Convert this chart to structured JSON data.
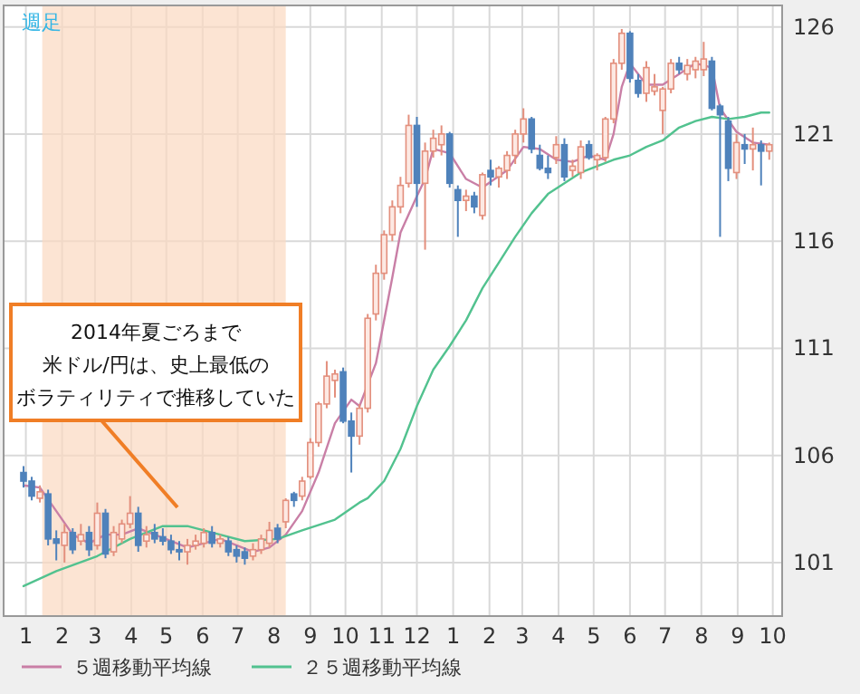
{
  "chart_data": {
    "type": "candlestick",
    "title": "週足",
    "x": [
      "2013-12-30",
      "2014-01-06",
      "2014-01-13",
      "2014-01-20",
      "2014-01-27",
      "2014-02-03",
      "2014-02-10",
      "2014-02-17",
      "2014-02-24",
      "2014-03-03",
      "2014-03-10",
      "2014-03-17",
      "2014-03-24",
      "2014-03-31",
      "2014-04-07",
      "2014-04-14",
      "2014-04-21",
      "2014-04-28",
      "2014-05-05",
      "2014-05-12",
      "2014-05-19",
      "2014-05-26",
      "2014-06-02",
      "2014-06-09",
      "2014-06-16",
      "2014-06-23",
      "2014-06-30",
      "2014-07-07",
      "2014-07-14",
      "2014-07-21",
      "2014-07-28",
      "2014-08-04",
      "2014-08-11",
      "2014-08-18",
      "2014-08-25",
      "2014-09-01",
      "2014-09-08",
      "2014-09-15",
      "2014-09-22",
      "2014-09-29",
      "2014-10-06",
      "2014-10-13",
      "2014-10-20",
      "2014-10-27",
      "2014-11-03",
      "2014-11-10",
      "2014-11-17",
      "2014-11-24",
      "2014-12-01",
      "2014-12-08",
      "2014-12-15",
      "2014-12-22",
      "2014-12-29",
      "2015-01-05",
      "2015-01-12",
      "2015-01-19",
      "2015-01-26",
      "2015-02-02",
      "2015-02-09",
      "2015-02-16",
      "2015-02-23",
      "2015-03-02",
      "2015-03-09",
      "2015-03-16",
      "2015-03-23",
      "2015-03-30",
      "2015-04-06",
      "2015-04-13",
      "2015-04-20",
      "2015-04-27",
      "2015-05-04",
      "2015-05-11",
      "2015-05-18",
      "2015-05-25",
      "2015-06-01",
      "2015-06-08",
      "2015-06-15",
      "2015-06-22",
      "2015-06-29",
      "2015-07-06",
      "2015-07-13",
      "2015-07-20",
      "2015-07-27",
      "2015-08-03",
      "2015-08-10",
      "2015-08-17",
      "2015-08-24",
      "2015-08-31",
      "2015-09-07",
      "2015-09-14",
      "2015-09-21",
      "2015-09-28"
    ],
    "ohlc": [
      [
        105.2,
        105.5,
        104.5,
        104.8
      ],
      [
        104.8,
        105.0,
        103.9,
        104.1
      ],
      [
        104.0,
        104.6,
        103.8,
        104.3
      ],
      [
        104.2,
        104.4,
        101.8,
        102.1
      ],
      [
        102.1,
        102.5,
        101.1,
        101.9
      ],
      [
        101.8,
        102.8,
        101.0,
        102.4
      ],
      [
        102.4,
        102.6,
        101.4,
        101.6
      ],
      [
        102.0,
        102.8,
        101.8,
        102.3
      ],
      [
        102.4,
        102.7,
        101.3,
        101.6
      ],
      [
        101.8,
        103.8,
        101.6,
        103.3
      ],
      [
        103.3,
        103.5,
        101.2,
        101.4
      ],
      [
        101.5,
        102.7,
        101.3,
        102.4
      ],
      [
        102.1,
        103.0,
        101.9,
        102.8
      ],
      [
        102.8,
        104.1,
        102.6,
        103.3
      ],
      [
        103.3,
        103.6,
        101.5,
        101.8
      ],
      [
        102.0,
        102.7,
        101.7,
        102.3
      ],
      [
        102.4,
        102.8,
        101.9,
        102.1
      ],
      [
        102.2,
        102.6,
        101.8,
        102.0
      ],
      [
        102.0,
        102.3,
        101.4,
        101.6
      ],
      [
        101.6,
        102.0,
        101.1,
        101.5
      ],
      [
        101.5,
        102.1,
        100.9,
        101.8
      ],
      [
        101.8,
        102.3,
        101.6,
        102.0
      ],
      [
        101.9,
        102.6,
        101.7,
        102.4
      ],
      [
        102.4,
        102.7,
        101.7,
        101.9
      ],
      [
        101.9,
        102.3,
        101.7,
        102.1
      ],
      [
        102.0,
        102.2,
        101.3,
        101.5
      ],
      [
        101.6,
        101.8,
        101.0,
        101.3
      ],
      [
        101.5,
        101.7,
        100.9,
        101.2
      ],
      [
        101.3,
        101.9,
        101.1,
        101.6
      ],
      [
        101.6,
        102.3,
        101.4,
        102.1
      ],
      [
        101.9,
        102.9,
        101.7,
        102.5
      ],
      [
        102.6,
        102.8,
        101.9,
        102.1
      ],
      [
        102.9,
        104.0,
        102.6,
        103.9
      ],
      [
        104.2,
        104.3,
        103.6,
        103.9
      ],
      [
        104.1,
        105.0,
        103.9,
        104.8
      ],
      [
        105.0,
        106.8,
        104.9,
        106.6
      ],
      [
        106.6,
        108.5,
        106.4,
        108.4
      ],
      [
        108.4,
        110.4,
        108.2,
        109.7
      ],
      [
        109.5,
        110.0,
        108.7,
        109.8
      ],
      [
        109.9,
        110.1,
        107.5,
        107.6
      ],
      [
        107.6,
        108.0,
        105.2,
        106.9
      ],
      [
        106.9,
        108.4,
        106.5,
        108.2
      ],
      [
        108.2,
        112.6,
        108.0,
        112.4
      ],
      [
        112.6,
        114.9,
        112.3,
        114.5
      ],
      [
        114.5,
        116.5,
        114.2,
        116.3
      ],
      [
        116.3,
        117.9,
        116.0,
        117.6
      ],
      [
        117.6,
        119.0,
        117.3,
        118.6
      ],
      [
        118.7,
        121.9,
        118.5,
        121.4
      ],
      [
        121.4,
        121.8,
        117.6,
        118.7
      ],
      [
        118.7,
        120.6,
        115.6,
        120.2
      ],
      [
        120.2,
        121.2,
        119.9,
        120.8
      ],
      [
        120.5,
        121.4,
        120.0,
        121.0
      ],
      [
        121.0,
        121.1,
        118.5,
        118.7
      ],
      [
        118.4,
        118.6,
        116.2,
        117.9
      ],
      [
        117.9,
        118.4,
        117.4,
        118.1
      ],
      [
        118.1,
        118.3,
        117.3,
        117.6
      ],
      [
        117.2,
        119.2,
        117.0,
        119.1
      ],
      [
        119.3,
        119.8,
        118.6,
        119.0
      ],
      [
        119.0,
        119.5,
        118.5,
        119.4
      ],
      [
        119.3,
        120.2,
        118.9,
        120.0
      ],
      [
        120.0,
        121.2,
        119.6,
        121.0
      ],
      [
        121.0,
        122.2,
        120.6,
        121.7
      ],
      [
        121.7,
        121.8,
        120.1,
        120.3
      ],
      [
        120.0,
        120.5,
        119.3,
        119.4
      ],
      [
        119.4,
        120.0,
        118.9,
        119.2
      ],
      [
        119.9,
        120.9,
        119.6,
        120.5
      ],
      [
        120.5,
        120.8,
        118.8,
        119.0
      ],
      [
        119.3,
        119.8,
        119.0,
        119.5
      ],
      [
        119.2,
        120.7,
        118.9,
        120.4
      ],
      [
        120.5,
        120.7,
        119.8,
        119.9
      ],
      [
        119.8,
        120.1,
        119.3,
        120.0
      ],
      [
        119.9,
        121.8,
        119.7,
        121.7
      ],
      [
        121.7,
        124.5,
        121.5,
        124.3
      ],
      [
        124.3,
        125.9,
        124.0,
        125.7
      ],
      [
        125.7,
        125.8,
        123.4,
        123.6
      ],
      [
        123.5,
        123.8,
        122.7,
        122.9
      ],
      [
        122.9,
        124.4,
        122.5,
        124.1
      ],
      [
        123.0,
        123.8,
        122.8,
        123.2
      ],
      [
        122.1,
        123.2,
        121.0,
        123.1
      ],
      [
        123.1,
        124.5,
        122.9,
        124.3
      ],
      [
        124.3,
        124.6,
        123.8,
        124.0
      ],
      [
        123.8,
        124.5,
        123.5,
        124.2
      ],
      [
        124.0,
        124.6,
        123.6,
        124.4
      ],
      [
        124.0,
        125.3,
        123.7,
        124.5
      ],
      [
        124.4,
        124.6,
        122.1,
        122.2
      ],
      [
        122.3,
        122.4,
        116.2,
        121.9
      ],
      [
        121.6,
        121.8,
        118.8,
        119.4
      ],
      [
        119.2,
        121.0,
        118.9,
        120.6
      ],
      [
        120.5,
        121.0,
        119.6,
        120.3
      ],
      [
        120.3,
        121.3,
        119.3,
        120.5
      ],
      [
        120.5,
        120.7,
        118.6,
        120.2
      ],
      [
        120.2,
        120.6,
        119.8,
        120.5
      ]
    ],
    "series": [
      {
        "name": "５週移動平均線",
        "type": "line",
        "color": "#c97fa6",
        "x": [
          "2013-12-30",
          "2014-01-13",
          "2014-01-27",
          "2014-02-10",
          "2014-02-24",
          "2014-03-10",
          "2014-03-24",
          "2014-04-07",
          "2014-04-21",
          "2014-05-05",
          "2014-05-19",
          "2014-06-02",
          "2014-06-16",
          "2014-06-30",
          "2014-07-14",
          "2014-07-28",
          "2014-08-11",
          "2014-08-25",
          "2014-09-08",
          "2014-09-22",
          "2014-10-06",
          "2014-10-13",
          "2014-10-27",
          "2014-11-10",
          "2014-11-17",
          "2014-12-01",
          "2014-12-08",
          "2014-12-15",
          "2014-12-29",
          "2015-01-12",
          "2015-01-26",
          "2015-02-16",
          "2015-03-02",
          "2015-03-16",
          "2015-03-30",
          "2015-04-13",
          "2015-04-27",
          "2015-05-11",
          "2015-05-18",
          "2015-05-25",
          "2015-06-01",
          "2015-06-15",
          "2015-06-29",
          "2015-07-13",
          "2015-07-27",
          "2015-08-10",
          "2015-08-17",
          "2015-08-31",
          "2015-09-14",
          "2015-09-28"
        ],
        "values": [
          104.6,
          104.5,
          103.4,
          102.3,
          101.9,
          102.3,
          102.3,
          102.6,
          102.3,
          102.0,
          101.7,
          101.9,
          102.1,
          101.8,
          101.5,
          101.7,
          102.3,
          103.4,
          105.2,
          107.5,
          108.6,
          108.3,
          110.3,
          114.3,
          116.4,
          118.1,
          118.9,
          120.3,
          120.1,
          118.9,
          118.5,
          119.3,
          120.4,
          120.3,
          119.8,
          119.7,
          120.0,
          119.8,
          121.0,
          123.2,
          124.3,
          123.3,
          123.3,
          123.8,
          124.3,
          124.1,
          122.2,
          121.1,
          120.6,
          120.5
        ]
      },
      {
        "name": "２５週移動平均線",
        "type": "line",
        "color": "#52c28f",
        "x": [
          "2013-12-30",
          "2014-01-27",
          "2014-03-03",
          "2014-03-31",
          "2014-04-28",
          "2014-05-19",
          "2014-06-16",
          "2014-07-07",
          "2014-08-04",
          "2014-08-25",
          "2014-09-22",
          "2014-10-13",
          "2014-10-20",
          "2014-11-03",
          "2014-11-17",
          "2014-12-01",
          "2014-12-15",
          "2014-12-29",
          "2015-01-12",
          "2015-01-26",
          "2015-02-09",
          "2015-02-23",
          "2015-03-09",
          "2015-03-23",
          "2015-04-06",
          "2015-04-20",
          "2015-05-04",
          "2015-05-18",
          "2015-06-01",
          "2015-06-15",
          "2015-06-29",
          "2015-07-13",
          "2015-07-27",
          "2015-08-10",
          "2015-08-24",
          "2015-09-07",
          "2015-09-21",
          "2015-09-28"
        ],
        "values": [
          99.9,
          100.6,
          101.3,
          102.1,
          102.7,
          102.7,
          102.3,
          102.0,
          102.1,
          102.5,
          103.0,
          103.8,
          104.0,
          104.8,
          106.3,
          108.3,
          110.0,
          111.1,
          112.3,
          113.8,
          115.0,
          116.2,
          117.3,
          118.2,
          118.7,
          119.2,
          119.5,
          119.8,
          120.0,
          120.4,
          120.7,
          121.3,
          121.6,
          121.8,
          121.7,
          121.8,
          122.0,
          122.0
        ]
      }
    ],
    "xlim": [
      "2013-12-13",
      "2015-10-09"
    ],
    "xticks": [
      {
        "value": "2014-01-01",
        "label": "1"
      },
      {
        "value": "2014-02-01",
        "label": "2"
      },
      {
        "value": "2014-03-01",
        "label": "3"
      },
      {
        "value": "2014-04-01",
        "label": "4"
      },
      {
        "value": "2014-05-01",
        "label": "5"
      },
      {
        "value": "2014-06-01",
        "label": "6"
      },
      {
        "value": "2014-07-01",
        "label": "7"
      },
      {
        "value": "2014-08-01",
        "label": "8"
      },
      {
        "value": "2014-09-01",
        "label": "9"
      },
      {
        "value": "2014-10-01",
        "label": "10"
      },
      {
        "value": "2014-11-01",
        "label": "11"
      },
      {
        "value": "2014-12-01",
        "label": "12"
      },
      {
        "value": "2015-01-01",
        "label": "1"
      },
      {
        "value": "2015-02-01",
        "label": "2"
      },
      {
        "value": "2015-03-01",
        "label": "3"
      },
      {
        "value": "2015-04-01",
        "label": "4"
      },
      {
        "value": "2015-05-01",
        "label": "5"
      },
      {
        "value": "2015-06-01",
        "label": "6"
      },
      {
        "value": "2015-07-01",
        "label": "7"
      },
      {
        "value": "2015-08-01",
        "label": "8"
      },
      {
        "value": "2015-09-01",
        "label": "9"
      },
      {
        "value": "2015-10-01",
        "label": "10"
      }
    ],
    "ylim": [
      98.5,
      127.0
    ],
    "yticks": [
      101,
      106,
      111,
      116,
      121,
      126
    ],
    "grid": true,
    "legend": "bottom",
    "bands": [
      {
        "axis": "x",
        "from": "2014-01-15",
        "to": "2014-08-11",
        "color": "#fbd9c0"
      }
    ],
    "annotations": [
      "2014年夏ごろまで",
      "米ドル/円は、史上最低の",
      "ボラティリティで推移していた"
    ]
  }
}
